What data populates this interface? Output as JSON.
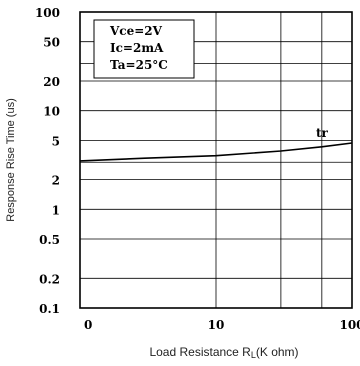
{
  "chart_data": {
    "type": "line",
    "title": "",
    "xlabel": "Load Resistance RL(K ohm)",
    "xlabel_parts": {
      "main": "Load Resistance R",
      "sub": "L",
      "tail": "(K ohm)"
    },
    "ylabel": "Response Rise Time (us)",
    "x_scale": "log",
    "y_scale": "log",
    "xlim": [
      1,
      100
    ],
    "ylim": [
      0.1,
      100
    ],
    "x_ticks": [
      {
        "value": 1,
        "label": "0"
      },
      {
        "value": 10,
        "label": "10"
      },
      {
        "value": 100,
        "label": "100"
      }
    ],
    "y_ticks": [
      {
        "value": 100,
        "label": "100"
      },
      {
        "value": 50,
        "label": "50"
      },
      {
        "value": 20,
        "label": "20"
      },
      {
        "value": 10,
        "label": "10"
      },
      {
        "value": 5,
        "label": "5"
      },
      {
        "value": 2,
        "label": "2"
      },
      {
        "value": 1,
        "label": "1"
      },
      {
        "value": 0.5,
        "label": "0.5"
      },
      {
        "value": 0.2,
        "label": "0.2"
      },
      {
        "value": 0.1,
        "label": "0.1"
      }
    ],
    "grid": true,
    "annotations": [
      "Vce=2V",
      "Ic=2mA",
      "Ta=25°C"
    ],
    "series": [
      {
        "name": "tr",
        "x": [
          1,
          3,
          10,
          30,
          60,
          100
        ],
        "y": [
          3.1,
          3.3,
          3.5,
          3.9,
          4.3,
          4.7
        ]
      }
    ]
  }
}
